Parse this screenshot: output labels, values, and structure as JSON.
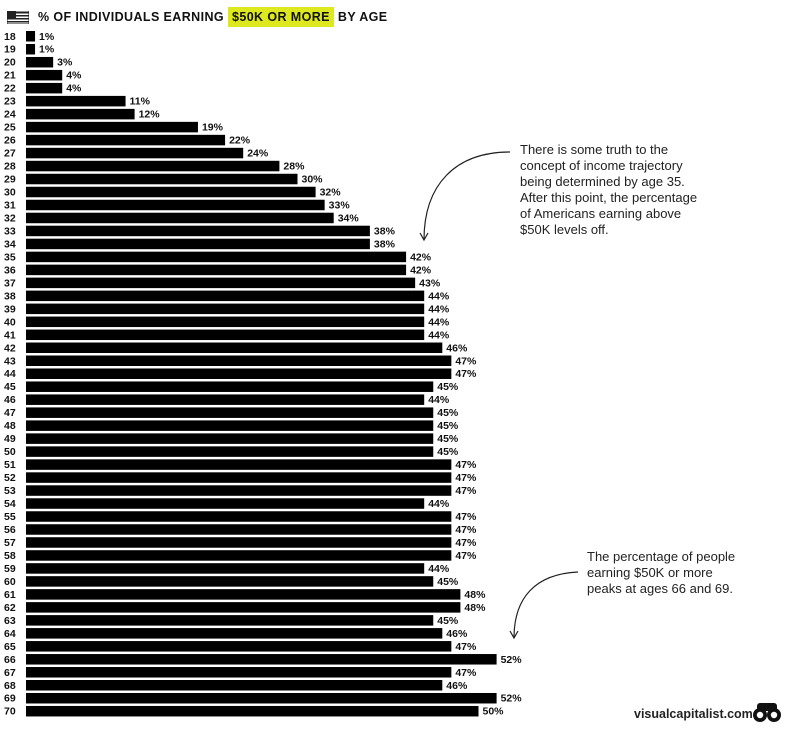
{
  "title": {
    "prefix": "% OF INDIVIDUALS EARNING",
    "highlight": "$50K OR MORE",
    "suffix": "BY AGE"
  },
  "annotations": {
    "trajectory_note": [
      "There is some truth to the",
      "concept of income trajectory",
      "being determined by age 35.",
      "After this point, the percentage",
      "of Americans earning above",
      "$50K levels off."
    ],
    "peak_note": [
      "The percentage of people",
      "earning $50K or more",
      "peaks at ages 66 and 69."
    ]
  },
  "footer": {
    "brand": "visualcapitalist.com"
  },
  "colors": {
    "bar": "#000000",
    "highlight": "#dde81f",
    "text": "#111111"
  },
  "icons": {
    "flag": "us-flag-icon",
    "logo": "binoculars-logo-icon"
  },
  "chart_data": {
    "type": "bar",
    "orientation": "horizontal",
    "title": "% OF INDIVIDUALS EARNING $50K OR MORE BY AGE",
    "categories": [
      "18",
      "19",
      "20",
      "21",
      "22",
      "23",
      "24",
      "25",
      "26",
      "27",
      "28",
      "29",
      "30",
      "31",
      "32",
      "33",
      "34",
      "35",
      "36",
      "37",
      "38",
      "39",
      "40",
      "41",
      "42",
      "43",
      "44",
      "45",
      "46",
      "47",
      "48",
      "49",
      "50",
      "51",
      "52",
      "53",
      "54",
      "55",
      "56",
      "57",
      "58",
      "59",
      "60",
      "61",
      "62",
      "63",
      "64",
      "65",
      "66",
      "67",
      "68",
      "69",
      "70"
    ],
    "values": [
      1,
      1,
      3,
      4,
      4,
      11,
      12,
      19,
      22,
      24,
      28,
      30,
      32,
      33,
      34,
      38,
      38,
      42,
      42,
      43,
      44,
      44,
      44,
      44,
      46,
      47,
      47,
      45,
      44,
      45,
      45,
      45,
      45,
      47,
      47,
      47,
      44,
      47,
      47,
      47,
      47,
      44,
      45,
      48,
      48,
      45,
      46,
      47,
      52,
      47,
      46,
      52,
      50
    ],
    "value_suffix": "%",
    "grid": false
  }
}
